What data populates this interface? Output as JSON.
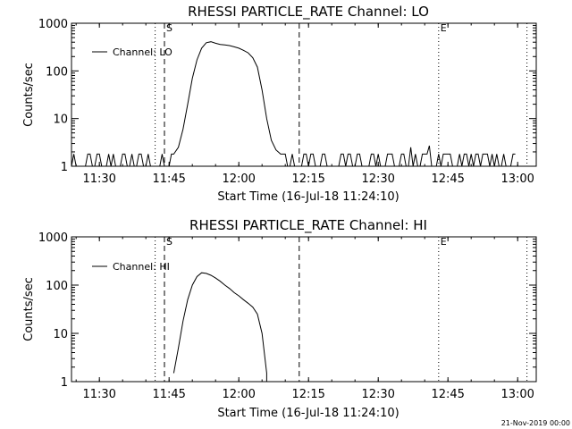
{
  "chart_data": [
    {
      "type": "line",
      "title": "RHESSI PARTICLE_RATE Channel: LO",
      "xlabel": "Start Time (16-Jul-18 11:24:10)",
      "ylabel": "Counts/sec",
      "x_unit": "minutes",
      "xlim": [
        "11:24",
        "13:04"
      ],
      "ylim": [
        1,
        1000
      ],
      "y_scale": "log",
      "x_ticks": [
        "11:30",
        "11:45",
        "12:00",
        "12:15",
        "12:30",
        "12:45",
        "13:00"
      ],
      "y_ticks": [
        "1",
        "10",
        "100",
        "1000"
      ],
      "legend": "top-left",
      "series": [
        {
          "name": "Channel: LO",
          "noisy_baseline": {
            "from": "11:24",
            "to": "11:46",
            "low": 1,
            "high": 1.8
          },
          "points": [
            [
              "11:46",
              1.8
            ],
            [
              "11:47",
              2.5
            ],
            [
              "11:48",
              6
            ],
            [
              "11:49",
              20
            ],
            [
              "11:50",
              70
            ],
            [
              "11:51",
              170
            ],
            [
              "11:52",
              300
            ],
            [
              "11:53",
              390
            ],
            [
              "11:54",
              410
            ],
            [
              "11:55",
              380
            ],
            [
              "11:56",
              360
            ],
            [
              "11:57",
              350
            ],
            [
              "11:58",
              340
            ],
            [
              "11:59",
              320
            ],
            [
              "12:00",
              300
            ],
            [
              "12:01",
              270
            ],
            [
              "12:02",
              240
            ],
            [
              "12:03",
              190
            ],
            [
              "12:04",
              120
            ],
            [
              "12:05",
              40
            ],
            [
              "12:06",
              10
            ],
            [
              "12:07",
              3.5
            ],
            [
              "12:08",
              2.2
            ],
            [
              "12:09",
              1.8
            ]
          ],
          "noisy_tail": {
            "from": "12:09",
            "to": "13:00",
            "low": 1,
            "high": 1.8
          },
          "spikes": [
            [
              "12:37",
              2.5
            ],
            [
              "12:41",
              2.7
            ]
          ]
        }
      ],
      "markers": [
        {
          "label": "S",
          "time": "11:44",
          "style": "dashed"
        },
        {
          "label": "",
          "time": "12:13",
          "style": "dashed"
        },
        {
          "label": "",
          "time": "11:42",
          "style": "dotted"
        },
        {
          "label": "E",
          "time": "12:43",
          "style": "dotted"
        },
        {
          "label": "",
          "time": "13:02",
          "style": "dotted"
        }
      ]
    },
    {
      "type": "line",
      "title": "RHESSI PARTICLE_RATE Channel: HI",
      "xlabel": "Start Time (16-Jul-18 11:24:10)",
      "ylabel": "Counts/sec",
      "x_unit": "minutes",
      "xlim": [
        "11:24",
        "13:04"
      ],
      "ylim": [
        1,
        1000
      ],
      "y_scale": "log",
      "x_ticks": [
        "11:30",
        "11:45",
        "12:00",
        "12:15",
        "12:30",
        "12:45",
        "13:00"
      ],
      "y_ticks": [
        "1",
        "10",
        "100",
        "1000"
      ],
      "legend": "top-left",
      "series": [
        {
          "name": "Channel: HI",
          "points": [
            [
              "11:46",
              1.5
            ],
            [
              "11:47",
              5
            ],
            [
              "11:48",
              18
            ],
            [
              "11:49",
              50
            ],
            [
              "11:50",
              100
            ],
            [
              "11:51",
              150
            ],
            [
              "11:52",
              180
            ],
            [
              "11:53",
              175
            ],
            [
              "11:54",
              160
            ],
            [
              "11:55",
              140
            ],
            [
              "11:56",
              120
            ],
            [
              "11:57",
              100
            ],
            [
              "11:58",
              85
            ],
            [
              "11:59",
              70
            ],
            [
              "12:00",
              60
            ],
            [
              "12:01",
              50
            ],
            [
              "12:02",
              42
            ],
            [
              "12:03",
              35
            ],
            [
              "12:04",
              25
            ],
            [
              "12:05",
              10
            ],
            [
              "12:06",
              1.5
            ],
            [
              "12:06",
              1
            ]
          ]
        }
      ],
      "markers": [
        {
          "label": "S",
          "time": "11:44",
          "style": "dashed"
        },
        {
          "label": "",
          "time": "12:13",
          "style": "dashed"
        },
        {
          "label": "",
          "time": "11:42",
          "style": "dotted"
        },
        {
          "label": "E",
          "time": "12:43",
          "style": "dotted"
        },
        {
          "label": "",
          "time": "13:02",
          "style": "dotted"
        }
      ]
    }
  ],
  "footer": {
    "stamp": "21-Nov-2019 00:00"
  }
}
